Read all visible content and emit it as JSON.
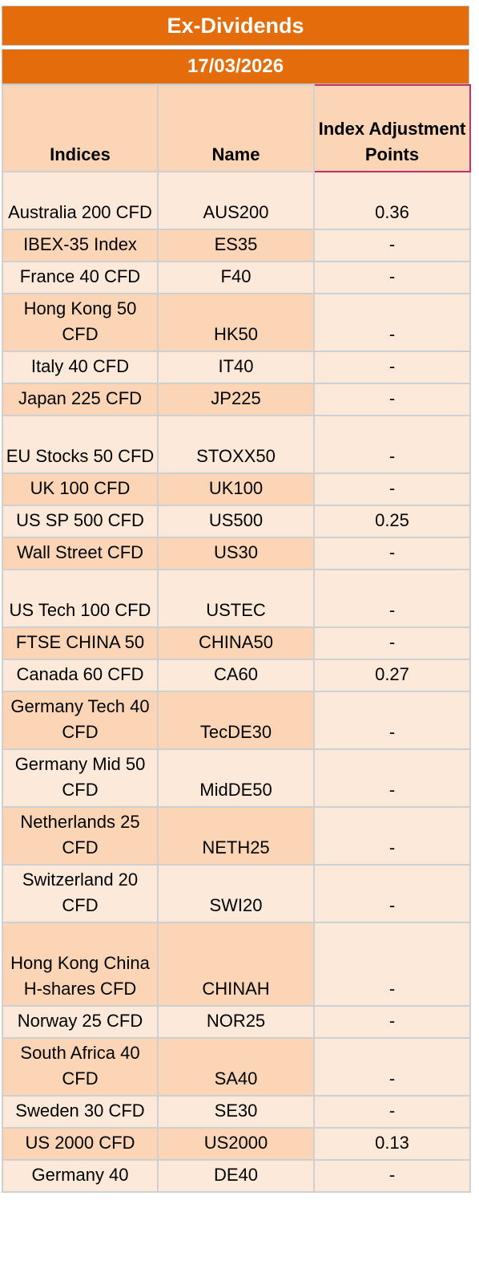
{
  "title": "Ex-Dividends",
  "date": "17/03/2026",
  "columns": [
    "Indices",
    "Name",
    "Index Adjustment Points"
  ],
  "rows": [
    {
      "index": "Australia 200 CFD",
      "name": "AUS200",
      "points": "0.36"
    },
    {
      "index": "IBEX-35 Index",
      "name": "ES35",
      "points": "-"
    },
    {
      "index": "France 40 CFD",
      "name": "F40",
      "points": "-"
    },
    {
      "index": "Hong Kong 50 CFD",
      "name": "HK50",
      "points": "-"
    },
    {
      "index": "Italy 40 CFD",
      "name": "IT40",
      "points": "-"
    },
    {
      "index": "Japan 225 CFD",
      "name": "JP225",
      "points": "-"
    },
    {
      "index": "EU Stocks 50 CFD",
      "name": "STOXX50",
      "points": "-"
    },
    {
      "index": "UK 100 CFD",
      "name": "UK100",
      "points": "-"
    },
    {
      "index": "US SP 500 CFD",
      "name": "US500",
      "points": "0.25"
    },
    {
      "index": "Wall Street CFD",
      "name": "US30",
      "points": "-"
    },
    {
      "index": "US Tech 100 CFD",
      "name": "USTEC",
      "points": "-"
    },
    {
      "index": "FTSE CHINA 50",
      "name": "CHINA50",
      "points": "-"
    },
    {
      "index": "Canada 60 CFD",
      "name": "CA60",
      "points": "0.27"
    },
    {
      "index": "Germany Tech 40 CFD",
      "name": "TecDE30",
      "points": "-"
    },
    {
      "index": "Germany Mid 50 CFD",
      "name": "MidDE50",
      "points": "-"
    },
    {
      "index": "Netherlands 25 CFD",
      "name": "NETH25",
      "points": "-"
    },
    {
      "index": "Switzerland 20 CFD",
      "name": "SWI20",
      "points": "-"
    },
    {
      "index": "Hong Kong China H-shares CFD",
      "name": "CHINAH",
      "points": "-"
    },
    {
      "index": "Norway 25 CFD",
      "name": "NOR25",
      "points": "-"
    },
    {
      "index": "South Africa 40 CFD",
      "name": "SA40",
      "points": "-"
    },
    {
      "index": "Sweden 30 CFD",
      "name": "SE30",
      "points": "-"
    },
    {
      "index": "US 2000 CFD",
      "name": "US2000",
      "points": "0.13"
    },
    {
      "index": "Germany 40",
      "name": "DE40",
      "points": "-"
    }
  ]
}
